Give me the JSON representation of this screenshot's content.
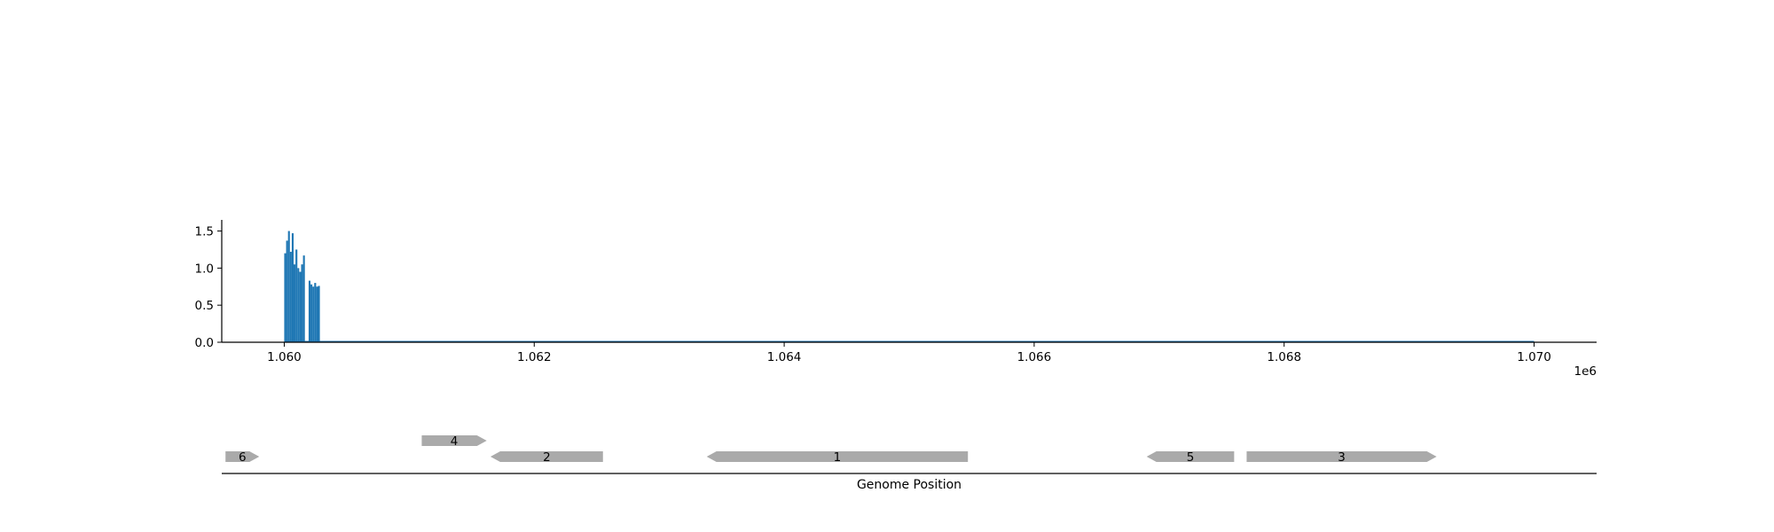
{
  "chart_data": [
    {
      "type": "bar",
      "title": "",
      "xlabel": "",
      "ylabel": "",
      "x_offset_label": "1e6",
      "xlim": [
        1059500,
        1070500
      ],
      "ylim": [
        0,
        1.65
      ],
      "x_ticks": [
        1060000,
        1062000,
        1064000,
        1066000,
        1068000,
        1070000
      ],
      "x_tick_labels": [
        "1.060",
        "1.062",
        "1.064",
        "1.066",
        "1.068",
        "1.070"
      ],
      "y_ticks": [
        0,
        0.5,
        1.0,
        1.5
      ],
      "y_tick_labels": [
        "0.0",
        "0.5",
        "1.0",
        "1.5"
      ],
      "grid": false,
      "color": "#1f77b4",
      "bar_width": 15,
      "baseline_range": [
        1060000,
        1070000
      ],
      "x": [
        1060000,
        1060015,
        1060030,
        1060045,
        1060060,
        1060075,
        1060090,
        1060105,
        1060120,
        1060135,
        1060150,
        1060195,
        1060210,
        1060225,
        1060240,
        1060255,
        1060270
      ],
      "values": [
        1.2,
        1.37,
        1.5,
        1.22,
        1.47,
        1.05,
        1.25,
        1.0,
        0.95,
        1.05,
        1.17,
        0.83,
        0.78,
        0.75,
        0.8,
        0.75,
        0.76
      ]
    },
    {
      "type": "gene_track",
      "xlabel": "Genome Position",
      "xlim": [
        1059500,
        1070500
      ],
      "color": "#aaaaaa",
      "genes": [
        {
          "label": "6",
          "start": 1059530,
          "end": 1059800,
          "strand": "+",
          "row": 0
        },
        {
          "label": "4",
          "start": 1061100,
          "end": 1061620,
          "strand": "+",
          "row": 1
        },
        {
          "label": "2",
          "start": 1061650,
          "end": 1062550,
          "strand": "-",
          "row": 0
        },
        {
          "label": "1",
          "start": 1063380,
          "end": 1065470,
          "strand": "-",
          "row": 0
        },
        {
          "label": "5",
          "start": 1066900,
          "end": 1067600,
          "strand": "-",
          "row": 0
        },
        {
          "label": "3",
          "start": 1067700,
          "end": 1069220,
          "strand": "+",
          "row": 0
        }
      ]
    }
  ]
}
